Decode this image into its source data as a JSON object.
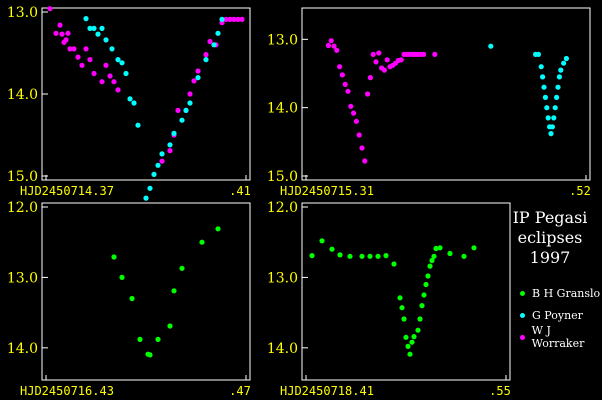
{
  "chart_data": [
    {
      "type": "scatter",
      "title": "",
      "xlabel": "",
      "ylabel": "",
      "x_tick_labels": [
        "HJD2450714.37",
        ".41"
      ],
      "y_ticks": [
        "13.0",
        "14.0",
        "15.0"
      ],
      "xlim": [
        0.0,
        1.0
      ],
      "ylim": [
        13.0,
        15.0
      ],
      "y_inverted": true,
      "series": [
        {
          "name": "W J Worraker",
          "color": "#ff00ff",
          "x": [
            0.02,
            0.05,
            0.07,
            0.08,
            0.09,
            0.1,
            0.11,
            0.12,
            0.14,
            0.16,
            0.18,
            0.2,
            0.22,
            0.24,
            0.28,
            0.3,
            0.32,
            0.34,
            0.36,
            0.58,
            0.62,
            0.64,
            0.66,
            0.7,
            0.72,
            0.74,
            0.76,
            0.8,
            0.82,
            0.85,
            0.88,
            0.9,
            0.92,
            0.94,
            0.96,
            0.98
          ],
          "y": [
            12.96,
            13.26,
            13.16,
            13.27,
            13.37,
            13.34,
            13.26,
            13.45,
            13.45,
            13.55,
            13.65,
            13.45,
            13.58,
            13.75,
            13.85,
            13.65,
            13.78,
            13.85,
            13.95,
            14.82,
            14.69,
            14.5,
            14.2,
            14.2,
            14.0,
            13.84,
            13.72,
            13.52,
            13.36,
            13.4,
            13.13,
            13.09,
            13.09,
            13.09,
            13.09,
            13.09
          ]
        },
        {
          "name": "G Poyner",
          "color": "#00ffff",
          "x": [
            0.2,
            0.22,
            0.24,
            0.26,
            0.28,
            0.3,
            0.33,
            0.36,
            0.38,
            0.4,
            0.42,
            0.44,
            0.46,
            0.5,
            0.52,
            0.54,
            0.56,
            0.58,
            0.62,
            0.64,
            0.68,
            0.7,
            0.72,
            0.76,
            0.8,
            0.84,
            0.86,
            0.88
          ],
          "y": [
            13.08,
            13.2,
            13.2,
            13.27,
            13.2,
            13.34,
            13.45,
            13.58,
            13.62,
            13.75,
            14.06,
            14.11,
            14.38,
            15.27,
            15.15,
            14.98,
            14.87,
            14.73,
            14.62,
            14.48,
            14.32,
            14.2,
            14.11,
            13.8,
            13.58,
            13.4,
            13.26,
            13.09
          ]
        }
      ]
    },
    {
      "type": "scatter",
      "title": "",
      "xlabel": "",
      "ylabel": "",
      "x_tick_labels": [
        "HJD2450715.31",
        ".52"
      ],
      "y_ticks": [
        "13.0",
        "14.0",
        "15.0"
      ],
      "xlim": [
        0.0,
        1.0
      ],
      "ylim": [
        12.6,
        15.0
      ],
      "y_inverted": true,
      "series": [
        {
          "name": "W J Worraker",
          "color": "#ff00ff",
          "x": [
            0.08,
            0.09,
            0.1,
            0.11,
            0.12,
            0.13,
            0.14,
            0.15,
            0.16,
            0.17,
            0.18,
            0.19,
            0.2,
            0.21,
            0.22,
            0.23,
            0.24,
            0.25,
            0.26,
            0.27,
            0.28,
            0.29,
            0.3,
            0.31,
            0.32,
            0.33,
            0.34,
            0.35,
            0.36,
            0.37,
            0.38,
            0.39,
            0.4,
            0.41,
            0.42,
            0.46
          ],
          "y": [
            13.09,
            13.02,
            13.1,
            13.16,
            13.4,
            13.52,
            13.66,
            13.76,
            13.98,
            14.08,
            14.2,
            14.4,
            14.59,
            14.78,
            13.8,
            13.56,
            13.22,
            13.33,
            13.2,
            13.42,
            13.45,
            13.3,
            13.4,
            13.38,
            13.35,
            13.31,
            13.3,
            13.22,
            13.22,
            13.22,
            13.22,
            13.22,
            13.22,
            13.22,
            13.22,
            13.22
          ]
        },
        {
          "name": "G Poyner",
          "color": "#00ffff",
          "x": [
            0.66,
            0.82,
            0.83,
            0.84,
            0.845,
            0.85,
            0.855,
            0.86,
            0.865,
            0.87,
            0.875,
            0.88,
            0.885,
            0.89,
            0.895,
            0.9,
            0.905,
            0.91,
            0.92,
            0.93
          ],
          "y": [
            13.1,
            13.22,
            13.22,
            13.4,
            13.55,
            13.7,
            13.85,
            14.0,
            14.15,
            14.28,
            14.38,
            14.28,
            14.15,
            14.0,
            13.85,
            13.7,
            13.55,
            13.45,
            13.35,
            13.28
          ]
        }
      ]
    },
    {
      "type": "scatter",
      "title": "",
      "xlabel": "",
      "ylabel": "",
      "x_tick_labels": [
        "HJD2450716.43",
        ".47"
      ],
      "y_ticks": [
        "12.0",
        "13.0",
        "14.0"
      ],
      "xlim": [
        0.0,
        1.0
      ],
      "ylim": [
        12.0,
        14.4
      ],
      "y_inverted": true,
      "series": [
        {
          "name": "B H Granslo",
          "color": "#00ff00",
          "x": [
            0.34,
            0.38,
            0.43,
            0.47,
            0.51,
            0.52,
            0.56,
            0.62,
            0.64,
            0.68,
            0.78,
            0.86
          ],
          "y": [
            12.71,
            13.0,
            13.3,
            13.88,
            14.09,
            14.1,
            13.88,
            13.69,
            13.19,
            12.87,
            12.5,
            12.31
          ]
        }
      ]
    },
    {
      "type": "scatter",
      "title": "",
      "xlabel": "",
      "ylabel": "",
      "x_tick_labels": [
        "HJD2450718.41",
        ".55"
      ],
      "y_ticks": [
        "12.0",
        "13.0",
        "14.0"
      ],
      "xlim": [
        0.0,
        1.0
      ],
      "ylim": [
        12.0,
        14.4
      ],
      "y_inverted": true,
      "series": [
        {
          "name": "B H Granslo",
          "color": "#00ff00",
          "x": [
            0.03,
            0.08,
            0.13,
            0.17,
            0.22,
            0.28,
            0.32,
            0.36,
            0.4,
            0.44,
            0.47,
            0.48,
            0.49,
            0.5,
            0.51,
            0.52,
            0.53,
            0.54,
            0.56,
            0.57,
            0.58,
            0.59,
            0.6,
            0.61,
            0.62,
            0.63,
            0.64,
            0.65,
            0.67,
            0.72,
            0.79,
            0.84
          ],
          "y": [
            12.69,
            12.48,
            12.6,
            12.68,
            12.7,
            12.7,
            12.7,
            12.7,
            12.69,
            12.81,
            13.29,
            13.43,
            13.59,
            13.85,
            13.98,
            14.09,
            13.92,
            13.84,
            13.75,
            13.59,
            13.4,
            13.25,
            13.1,
            12.98,
            12.84,
            12.76,
            12.7,
            12.59,
            12.58,
            12.66,
            12.7,
            12.58
          ]
        }
      ]
    }
  ],
  "legend": {
    "title_lines": [
      "IP Pegasi",
      "eclipses",
      "1997"
    ],
    "items": [
      {
        "label": "B H Granslo",
        "color": "#00ff00"
      },
      {
        "label": "G Poyner",
        "color": "#00ffff"
      },
      {
        "label": "W J Worraker",
        "color": "#ff00ff"
      }
    ]
  }
}
